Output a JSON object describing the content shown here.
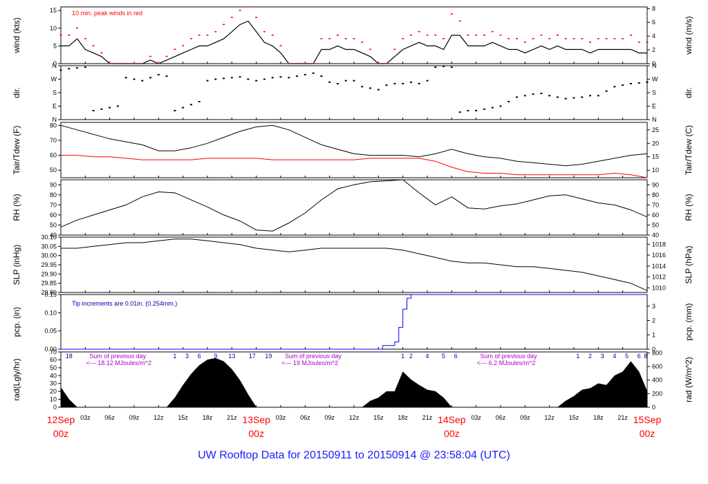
{
  "footer": {
    "title": "UW Rooftop Data for 20150911  to  20150914 @ 23:58:04  (UTC)",
    "color": "#1a1aff"
  },
  "colors": {
    "wind": "#000000",
    "peak": "#ff0000",
    "temp": "#000000",
    "dew": "#ff0000",
    "precip": "#0000ff",
    "note": "#0000aa",
    "rad_label": "#aa00cc",
    "date_label": "#ff0000"
  },
  "xaxis": {
    "range_hours": [
      0,
      72
    ],
    "tick_labels": [
      {
        "h": 3,
        "t": "03z"
      },
      {
        "h": 6,
        "t": "06z"
      },
      {
        "h": 9,
        "t": "09z"
      },
      {
        "h": 12,
        "t": "12z"
      },
      {
        "h": 15,
        "t": "15z"
      },
      {
        "h": 18,
        "t": "18z"
      },
      {
        "h": 21,
        "t": "21z"
      },
      {
        "h": 27,
        "t": "03z"
      },
      {
        "h": 30,
        "t": "06z"
      },
      {
        "h": 33,
        "t": "09z"
      },
      {
        "h": 36,
        "t": "12z"
      },
      {
        "h": 39,
        "t": "15z"
      },
      {
        "h": 42,
        "t": "18z"
      },
      {
        "h": 45,
        "t": "21z"
      },
      {
        "h": 51,
        "t": "03z"
      },
      {
        "h": 54,
        "t": "06z"
      },
      {
        "h": 57,
        "t": "09z"
      },
      {
        "h": 60,
        "t": "12z"
      },
      {
        "h": 63,
        "t": "15z"
      },
      {
        "h": 66,
        "t": "18z"
      },
      {
        "h": 69,
        "t": "21z"
      }
    ],
    "date_labels": [
      {
        "h": 0,
        "date": "12Sep",
        "time": "00z"
      },
      {
        "h": 24,
        "date": "13Sep",
        "time": "00z"
      },
      {
        "h": 48,
        "date": "14Sep",
        "time": "00z"
      },
      {
        "h": 72,
        "date": "15Sep",
        "time": "00z"
      }
    ]
  },
  "chart_data": [
    {
      "id": "wind",
      "type": "line",
      "ylabel_left": "wind (kts)",
      "ylabel_right": "wind (m/s)",
      "ylim": [
        0,
        16
      ],
      "yticks_left": [
        0,
        5,
        10,
        15
      ],
      "right_scale": {
        "factor": 0.514444,
        "ticks": [
          0,
          2,
          4,
          6,
          8
        ]
      },
      "annotation": "10 min. peak winds in red",
      "series": [
        {
          "role": "mean",
          "x": [
            0,
            1,
            2,
            3,
            4,
            5,
            6,
            7,
            8,
            9,
            10,
            11,
            12,
            13,
            14,
            15,
            16,
            17,
            18,
            19,
            20,
            21,
            22,
            23,
            24,
            25,
            26,
            27,
            28,
            29,
            30,
            31,
            32,
            33,
            34,
            35,
            36,
            37,
            38,
            39,
            40,
            41,
            42,
            43,
            44,
            45,
            46,
            47,
            48,
            49,
            50,
            51,
            52,
            53,
            54,
            55,
            56,
            57,
            58,
            59,
            60,
            61,
            62,
            63,
            64,
            65,
            66,
            67,
            68,
            69,
            70,
            71,
            72
          ],
          "y": [
            5,
            5,
            7,
            4,
            3,
            2,
            0,
            0,
            0,
            0,
            0,
            1,
            0,
            1,
            2,
            3,
            4,
            5,
            5,
            6,
            7,
            9,
            11,
            12,
            9,
            6,
            5,
            3,
            0,
            0,
            0,
            0,
            4,
            4,
            5,
            4,
            4,
            3,
            2,
            0,
            0,
            2,
            4,
            5,
            6,
            5,
            5,
            4,
            8,
            8,
            5,
            5,
            5,
            6,
            5,
            4,
            4,
            3,
            4,
            5,
            4,
            5,
            4,
            4,
            4,
            3,
            4,
            4,
            4,
            4,
            4,
            3,
            3
          ]
        },
        {
          "role": "peak",
          "x": [
            0,
            1,
            2,
            3,
            4,
            5,
            6,
            7,
            8,
            9,
            10,
            11,
            12,
            13,
            14,
            15,
            16,
            17,
            18,
            19,
            20,
            21,
            22,
            23,
            24,
            25,
            26,
            27,
            28,
            29,
            30,
            31,
            32,
            33,
            34,
            35,
            36,
            37,
            38,
            39,
            40,
            41,
            42,
            43,
            44,
            45,
            46,
            47,
            48,
            49,
            50,
            51,
            52,
            53,
            54,
            55,
            56,
            57,
            58,
            59,
            60,
            61,
            62,
            63,
            64,
            65,
            66,
            67,
            68,
            69,
            70,
            71,
            72
          ],
          "y": [
            8,
            8,
            10,
            7,
            5,
            3,
            0,
            0,
            0,
            0,
            0,
            2,
            0,
            2,
            4,
            5,
            7,
            8,
            8,
            9,
            11,
            13,
            15,
            16,
            13,
            9,
            8,
            5,
            0,
            0,
            0,
            0,
            7,
            7,
            8,
            7,
            7,
            6,
            4,
            0,
            0,
            4,
            7,
            8,
            9,
            8,
            8,
            7,
            14,
            12,
            8,
            8,
            8,
            9,
            8,
            7,
            7,
            6,
            7,
            8,
            7,
            8,
            7,
            7,
            7,
            6,
            7,
            7,
            7,
            7,
            8,
            6,
            6
          ]
        }
      ]
    },
    {
      "id": "dir",
      "type": "scatter",
      "ylabel_left": "dir.",
      "ylabel_right": "dir.",
      "ylim": [
        0,
        360
      ],
      "ytick_labels": [
        "N",
        "E",
        "S",
        "W",
        "N"
      ],
      "ytick_values": [
        0,
        90,
        180,
        270,
        360
      ],
      "x": [
        0,
        1,
        2,
        3,
        4,
        5,
        6,
        7,
        8,
        9,
        10,
        11,
        12,
        13,
        14,
        15,
        16,
        17,
        18,
        19,
        20,
        21,
        22,
        23,
        24,
        25,
        26,
        27,
        28,
        29,
        30,
        31,
        32,
        33,
        34,
        35,
        36,
        37,
        38,
        39,
        40,
        41,
        42,
        43,
        44,
        45,
        46,
        47,
        48,
        49,
        50,
        51,
        52,
        53,
        54,
        55,
        56,
        57,
        58,
        59,
        60,
        61,
        62,
        63,
        64,
        65,
        66,
        67,
        68,
        69,
        70,
        71,
        72
      ],
      "y": [
        330,
        340,
        345,
        350,
        60,
        70,
        80,
        90,
        280,
        270,
        260,
        280,
        300,
        290,
        60,
        80,
        100,
        120,
        260,
        270,
        275,
        280,
        285,
        270,
        260,
        270,
        280,
        285,
        280,
        290,
        300,
        310,
        290,
        250,
        240,
        260,
        260,
        220,
        210,
        200,
        230,
        240,
        240,
        250,
        240,
        260,
        350,
        355,
        350,
        50,
        60,
        60,
        70,
        80,
        90,
        120,
        150,
        160,
        170,
        175,
        160,
        150,
        140,
        145,
        150,
        160,
        160,
        190,
        220,
        230,
        240,
        245,
        250
      ]
    },
    {
      "id": "temp",
      "type": "line",
      "ylabel_left": "Tair/Tdew (F)",
      "ylabel_right": "Tair/Tdew (C)",
      "ylim": [
        45,
        82
      ],
      "yticks_left": [
        50,
        60,
        70,
        80
      ],
      "right_scale": {
        "type": "F_to_C",
        "ticks": [
          10,
          15,
          20,
          25
        ]
      },
      "x": [
        0,
        2,
        4,
        6,
        8,
        10,
        12,
        14,
        16,
        18,
        20,
        22,
        24,
        26,
        28,
        30,
        32,
        34,
        36,
        38,
        40,
        42,
        44,
        46,
        48,
        50,
        52,
        54,
        56,
        58,
        60,
        62,
        64,
        66,
        68,
        70,
        72
      ],
      "series": [
        {
          "name": "Tair",
          "y": [
            80,
            77,
            74,
            71,
            69,
            67,
            63,
            63,
            65,
            68,
            72,
            76,
            79,
            80,
            77,
            72,
            67,
            64,
            61,
            60,
            60,
            60,
            59,
            61,
            64,
            61,
            59,
            58,
            56,
            55,
            54,
            53,
            54,
            56,
            58,
            60,
            61
          ]
        },
        {
          "name": "Tdew",
          "y": [
            60,
            60,
            59,
            59,
            58,
            57,
            57,
            57,
            57,
            58,
            58,
            58,
            58,
            57,
            57,
            57,
            57,
            57,
            57,
            58,
            58,
            58,
            58,
            56,
            52,
            49,
            48,
            48,
            47,
            47,
            47,
            47,
            47,
            47,
            48,
            47,
            45
          ]
        }
      ]
    },
    {
      "id": "rh",
      "type": "line",
      "ylabel_left": "RH (%)",
      "ylabel_right": "RH (%)",
      "ylim": [
        40,
        95
      ],
      "yticks_left": [
        40,
        50,
        60,
        70,
        80,
        90
      ],
      "x": [
        0,
        2,
        4,
        6,
        8,
        10,
        12,
        14,
        16,
        18,
        20,
        22,
        24,
        26,
        28,
        30,
        32,
        34,
        36,
        38,
        40,
        42,
        44,
        46,
        48,
        50,
        52,
        54,
        56,
        58,
        60,
        62,
        64,
        66,
        68,
        70,
        72
      ],
      "y": [
        48,
        55,
        60,
        65,
        70,
        78,
        83,
        82,
        75,
        68,
        60,
        54,
        45,
        44,
        52,
        62,
        75,
        86,
        90,
        93,
        94,
        95,
        82,
        70,
        78,
        67,
        66,
        69,
        71,
        75,
        79,
        80,
        76,
        72,
        70,
        65,
        58
      ]
    },
    {
      "id": "slp",
      "type": "line",
      "ylabel_left": "SLP (inHg)",
      "ylabel_right": "SLP (hPa)",
      "ylim": [
        29.8,
        30.1
      ],
      "yticks_left": [
        29.8,
        29.85,
        29.9,
        29.95,
        30.0,
        30.05,
        30.1
      ],
      "right_scale": {
        "factor": 33.8639,
        "ticks": [
          1010,
          1012,
          1014,
          1016,
          1018
        ]
      },
      "x": [
        0,
        2,
        4,
        6,
        8,
        10,
        12,
        14,
        16,
        18,
        20,
        22,
        24,
        26,
        28,
        30,
        32,
        34,
        36,
        38,
        40,
        42,
        44,
        46,
        48,
        50,
        52,
        54,
        56,
        58,
        60,
        62,
        64,
        66,
        68,
        70,
        72
      ],
      "y": [
        30.04,
        30.04,
        30.05,
        30.06,
        30.07,
        30.07,
        30.08,
        30.09,
        30.09,
        30.08,
        30.07,
        30.06,
        30.04,
        30.03,
        30.02,
        30.03,
        30.04,
        30.04,
        30.04,
        30.04,
        30.04,
        30.03,
        30.01,
        29.99,
        29.97,
        29.96,
        29.96,
        29.95,
        29.94,
        29.94,
        29.93,
        29.92,
        29.91,
        29.89,
        29.87,
        29.85,
        29.81
      ]
    },
    {
      "id": "pcp",
      "type": "line",
      "ylabel_left": "pcp. (in)",
      "ylabel_right": "pcp. (mm)",
      "ylim": [
        0,
        0.15
      ],
      "yticks_left": [
        0.0,
        0.05,
        0.1,
        0.15
      ],
      "right_scale": {
        "factor": 25.4,
        "ticks": [
          0,
          1,
          2,
          3
        ]
      },
      "annotation": "Tip increments are 0.01in. (0.254mm.)",
      "x": [
        0,
        39,
        39.5,
        40,
        41,
        41.5,
        42,
        42.5,
        43,
        72
      ],
      "y": [
        0,
        0,
        0.01,
        0.01,
        0.02,
        0.06,
        0.11,
        0.14,
        0.15,
        0.15
      ]
    },
    {
      "id": "rad",
      "type": "area",
      "ylabel_left": "rad(Lgly/hr)",
      "ylabel_right": "rad (W/m^2)",
      "ylim": [
        0,
        70
      ],
      "yticks_left": [
        0,
        10,
        20,
        30,
        40,
        50,
        60,
        70
      ],
      "right_scale": {
        "factor": 11.63,
        "ticks": [
          0,
          200,
          400,
          600,
          800
        ]
      },
      "x": [
        0,
        1,
        2,
        13,
        14,
        15,
        16,
        17,
        18,
        19,
        20,
        21,
        22,
        23,
        24,
        37,
        38,
        39,
        40,
        41,
        42,
        43,
        44,
        45,
        46,
        47,
        48,
        61,
        62,
        63,
        64,
        65,
        66,
        67,
        68,
        69,
        70,
        71,
        72
      ],
      "y": [
        25,
        10,
        0,
        0,
        12,
        28,
        42,
        53,
        60,
        62,
        58,
        48,
        34,
        16,
        0,
        0,
        8,
        12,
        20,
        20,
        45,
        35,
        28,
        22,
        20,
        12,
        0,
        0,
        8,
        14,
        22,
        24,
        30,
        28,
        40,
        45,
        58,
        45,
        20
      ],
      "hour_labels": [
        {
          "h": 1,
          "t": "18"
        },
        {
          "h": 14,
          "t": "1"
        },
        {
          "h": 15.5,
          "t": "3"
        },
        {
          "h": 17,
          "t": "6"
        },
        {
          "h": 19,
          "t": "9"
        },
        {
          "h": 21,
          "t": "13"
        },
        {
          "h": 23.5,
          "t": "17"
        },
        {
          "h": 25.5,
          "t": "19"
        },
        {
          "h": 42,
          "t": "1"
        },
        {
          "h": 43,
          "t": "2"
        },
        {
          "h": 45,
          "t": "4"
        },
        {
          "h": 47,
          "t": "5"
        },
        {
          "h": 48.5,
          "t": "6"
        },
        {
          "h": 63.5,
          "t": "1"
        },
        {
          "h": 65,
          "t": "2"
        },
        {
          "h": 66.5,
          "t": "3"
        },
        {
          "h": 68,
          "t": "4"
        },
        {
          "h": 69.5,
          "t": "5"
        },
        {
          "h": 71,
          "t": "6"
        },
        {
          "h": 71.8,
          "t": "8"
        }
      ],
      "daily_notes": [
        {
          "h": 3.5,
          "line1": "Sum of previous day",
          "line2": "<--- 18.12 MJoules/m^2"
        },
        {
          "h": 27.5,
          "line1": "Sum of previous day",
          "line2": "<--- 19 MJoules/m^2"
        },
        {
          "h": 51.5,
          "line1": "Sum of previous day",
          "line2": "<--- 6.2 MJoules/m^2"
        }
      ]
    }
  ]
}
